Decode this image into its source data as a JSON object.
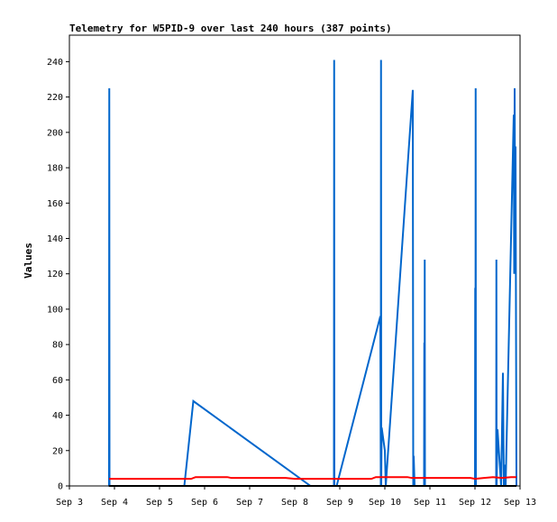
{
  "chart_data": {
    "type": "line",
    "title": "Telemetry for W5PID-9 over last 240 hours (387 points)",
    "xlabel": "",
    "ylabel": "Values",
    "x_ticks": [
      "Sep 3",
      "Sep 4",
      "Sep 5",
      "Sep 6",
      "Sep 7",
      "Sep 8",
      "Sep 9",
      "Sep 10",
      "Sep 11",
      "Sep 12",
      "Sep 13"
    ],
    "xlim": [
      0,
      10
    ],
    "ylim": [
      0,
      255
    ],
    "y_ticks": [
      0,
      20,
      40,
      60,
      80,
      100,
      120,
      140,
      160,
      180,
      200,
      220,
      240
    ],
    "grid": false,
    "legend": "none",
    "series": [
      {
        "color": "#0066cc",
        "points": [
          [
            0.88,
            0
          ],
          [
            0.885,
            225
          ],
          [
            0.89,
            0
          ],
          [
            2.55,
            0
          ],
          [
            2.75,
            48
          ],
          [
            5.35,
            0
          ],
          [
            5.87,
            0
          ],
          [
            5.875,
            241
          ],
          [
            5.88,
            0
          ],
          [
            5.93,
            0
          ],
          [
            6.9,
            96
          ],
          [
            6.91,
            0
          ],
          [
            6.915,
            241
          ],
          [
            6.92,
            0
          ],
          [
            6.93,
            33
          ],
          [
            7.0,
            20
          ],
          [
            7.02,
            0
          ],
          [
            7.62,
            224
          ],
          [
            7.63,
            0
          ],
          [
            7.64,
            17
          ],
          [
            7.66,
            0
          ],
          [
            7.87,
            0
          ],
          [
            7.875,
            81
          ],
          [
            7.88,
            0
          ],
          [
            7.885,
            128
          ],
          [
            7.89,
            0
          ],
          [
            9.0,
            0
          ],
          [
            9.005,
            112
          ],
          [
            9.01,
            0
          ],
          [
            9.015,
            225
          ],
          [
            9.02,
            0
          ],
          [
            9.47,
            0
          ],
          [
            9.475,
            128
          ],
          [
            9.48,
            0
          ],
          [
            9.5,
            32
          ],
          [
            9.58,
            0
          ],
          [
            9.62,
            64
          ],
          [
            9.64,
            0
          ],
          [
            9.66,
            12
          ],
          [
            9.68,
            0
          ],
          [
            9.86,
            210
          ],
          [
            9.87,
            120
          ],
          [
            9.88,
            225
          ],
          [
            9.89,
            150
          ],
          [
            9.9,
            192
          ],
          [
            9.92,
            0
          ]
        ]
      },
      {
        "color": "#ff0000",
        "points": [
          [
            0.88,
            4
          ],
          [
            2.7,
            4
          ],
          [
            2.8,
            5
          ],
          [
            3.5,
            5
          ],
          [
            3.6,
            4.5
          ],
          [
            4.8,
            4.5
          ],
          [
            5.0,
            4
          ],
          [
            6.7,
            4
          ],
          [
            6.8,
            5
          ],
          [
            7.5,
            5
          ],
          [
            7.6,
            4.5
          ],
          [
            8.9,
            4.5
          ],
          [
            9.0,
            4
          ],
          [
            9.2,
            4.5
          ],
          [
            9.4,
            5
          ],
          [
            9.6,
            4.5
          ],
          [
            9.8,
            5
          ],
          [
            9.92,
            5
          ]
        ]
      },
      {
        "color": "#000000",
        "points": [
          [
            0.88,
            0
          ],
          [
            9.92,
            0
          ]
        ]
      }
    ]
  }
}
